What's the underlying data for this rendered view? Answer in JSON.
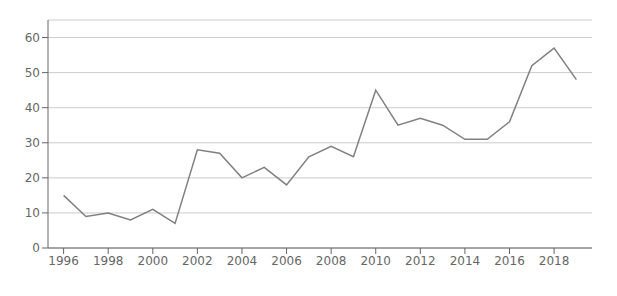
{
  "chart_data": {
    "type": "line",
    "x": [
      1996,
      1997,
      1998,
      1999,
      2000,
      2001,
      2002,
      2003,
      2004,
      2005,
      2006,
      2007,
      2008,
      2009,
      2010,
      2011,
      2012,
      2013,
      2014,
      2015,
      2016,
      2017,
      2018,
      2019
    ],
    "values": [
      15,
      9,
      10,
      8,
      11,
      7,
      28,
      27,
      20,
      23,
      18,
      26,
      29,
      26,
      45,
      35,
      37,
      35,
      31,
      31,
      36,
      52,
      57,
      48
    ],
    "color": "#808080",
    "xlim": [
      1995.3,
      2019.7
    ],
    "xticks": [
      1996,
      1998,
      2000,
      2002,
      2004,
      2006,
      2008,
      2010,
      2012,
      2014,
      2016,
      2018
    ],
    "ylim": [
      0,
      65
    ],
    "yticks": [
      0,
      10,
      20,
      30,
      40,
      50,
      60
    ],
    "grid": true
  }
}
